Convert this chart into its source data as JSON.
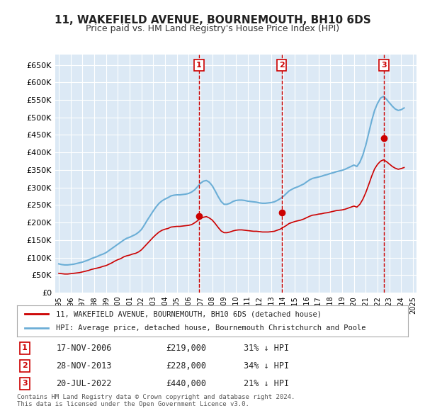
{
  "title": "11, WAKEFIELD AVENUE, BOURNEMOUTH, BH10 6DS",
  "subtitle": "Price paid vs. HM Land Registry's House Price Index (HPI)",
  "background_color": "#dce9f5",
  "plot_bg_color": "#dce9f5",
  "ylabel_color": "#222222",
  "ylim": [
    0,
    680000
  ],
  "yticks": [
    0,
    50000,
    100000,
    150000,
    200000,
    250000,
    300000,
    350000,
    400000,
    450000,
    500000,
    550000,
    600000,
    650000
  ],
  "ytick_labels": [
    "£0",
    "£50K",
    "£100K",
    "£150K",
    "£200K",
    "£250K",
    "£300K",
    "£350K",
    "£400K",
    "£450K",
    "£500K",
    "£550K",
    "£600K",
    "£650K"
  ],
  "xticks": [
    1995,
    1996,
    1997,
    1998,
    1999,
    2000,
    2001,
    2002,
    2003,
    2004,
    2005,
    2006,
    2007,
    2008,
    2009,
    2010,
    2011,
    2012,
    2013,
    2014,
    2015,
    2016,
    2017,
    2018,
    2019,
    2020,
    2021,
    2022,
    2023,
    2024,
    2025
  ],
  "hpi_line_color": "#6baed6",
  "sale_line_color": "#cc0000",
  "sale_marker_color": "#cc0000",
  "transaction_line_color": "#cc0000",
  "legend_box_color": "#ffffff",
  "legend_border_color": "#aaaaaa",
  "sale_label_color": "#cc0000",
  "number_box_color": "#cc0000",
  "footer_text": "Contains HM Land Registry data © Crown copyright and database right 2024.\nThis data is licensed under the Open Government Licence v3.0.",
  "legend_entry1": "11, WAKEFIELD AVENUE, BOURNEMOUTH, BH10 6DS (detached house)",
  "legend_entry2": "HPI: Average price, detached house, Bournemouth Christchurch and Poole",
  "transactions": [
    {
      "num": 1,
      "date": "17-NOV-2006",
      "price": 219000,
      "hpi_pct": "31% ↓ HPI",
      "x": 2006.88
    },
    {
      "num": 2,
      "date": "28-NOV-2013",
      "price": 228000,
      "hpi_pct": "34% ↓ HPI",
      "x": 2013.88
    },
    {
      "num": 3,
      "date": "20-JUL-2022",
      "price": 440000,
      "hpi_pct": "21% ↓ HPI",
      "x": 2022.54
    }
  ],
  "hpi_data_x": [
    1995.0,
    1995.25,
    1995.5,
    1995.75,
    1996.0,
    1996.25,
    1996.5,
    1996.75,
    1997.0,
    1997.25,
    1997.5,
    1997.75,
    1998.0,
    1998.25,
    1998.5,
    1998.75,
    1999.0,
    1999.25,
    1999.5,
    1999.75,
    2000.0,
    2000.25,
    2000.5,
    2000.75,
    2001.0,
    2001.25,
    2001.5,
    2001.75,
    2002.0,
    2002.25,
    2002.5,
    2002.75,
    2003.0,
    2003.25,
    2003.5,
    2003.75,
    2004.0,
    2004.25,
    2004.5,
    2004.75,
    2005.0,
    2005.25,
    2005.5,
    2005.75,
    2006.0,
    2006.25,
    2006.5,
    2006.75,
    2007.0,
    2007.25,
    2007.5,
    2007.75,
    2008.0,
    2008.25,
    2008.5,
    2008.75,
    2009.0,
    2009.25,
    2009.5,
    2009.75,
    2010.0,
    2010.25,
    2010.5,
    2010.75,
    2011.0,
    2011.25,
    2011.5,
    2011.75,
    2012.0,
    2012.25,
    2012.5,
    2012.75,
    2013.0,
    2013.25,
    2013.5,
    2013.75,
    2014.0,
    2014.25,
    2014.5,
    2014.75,
    2015.0,
    2015.25,
    2015.5,
    2015.75,
    2016.0,
    2016.25,
    2016.5,
    2016.75,
    2017.0,
    2017.25,
    2017.5,
    2017.75,
    2018.0,
    2018.25,
    2018.5,
    2018.75,
    2019.0,
    2019.25,
    2019.5,
    2019.75,
    2020.0,
    2020.25,
    2020.5,
    2020.75,
    2021.0,
    2021.25,
    2021.5,
    2021.75,
    2022.0,
    2022.25,
    2022.5,
    2022.75,
    2023.0,
    2023.25,
    2023.5,
    2023.75,
    2024.0,
    2024.25
  ],
  "hpi_data_y": [
    82000,
    80000,
    79000,
    79000,
    80000,
    81000,
    83000,
    85000,
    87000,
    90000,
    93000,
    97000,
    100000,
    103000,
    107000,
    110000,
    114000,
    120000,
    126000,
    132000,
    138000,
    144000,
    150000,
    155000,
    158000,
    162000,
    166000,
    172000,
    180000,
    193000,
    207000,
    220000,
    233000,
    245000,
    255000,
    262000,
    267000,
    271000,
    276000,
    278000,
    279000,
    279000,
    280000,
    281000,
    283000,
    287000,
    293000,
    302000,
    312000,
    318000,
    320000,
    315000,
    305000,
    290000,
    274000,
    260000,
    252000,
    252000,
    255000,
    260000,
    263000,
    264000,
    264000,
    263000,
    261000,
    260000,
    259000,
    258000,
    256000,
    255000,
    255000,
    256000,
    257000,
    259000,
    263000,
    268000,
    274000,
    282000,
    290000,
    295000,
    299000,
    302000,
    306000,
    310000,
    316000,
    322000,
    326000,
    328000,
    330000,
    332000,
    335000,
    337000,
    340000,
    342000,
    345000,
    347000,
    349000,
    352000,
    356000,
    360000,
    364000,
    360000,
    372000,
    392000,
    420000,
    455000,
    490000,
    520000,
    540000,
    555000,
    560000,
    552000,
    542000,
    532000,
    524000,
    520000,
    522000,
    527000
  ],
  "sale_hpi_x": [
    1995.0,
    1995.25,
    1995.5,
    1995.75,
    1996.0,
    1996.25,
    1996.5,
    1996.75,
    1997.0,
    1997.25,
    1997.5,
    1997.75,
    1998.0,
    1998.25,
    1998.5,
    1998.75,
    1999.0,
    1999.25,
    1999.5,
    1999.75,
    2000.0,
    2000.25,
    2000.5,
    2000.75,
    2001.0,
    2001.25,
    2001.5,
    2001.75,
    2002.0,
    2002.25,
    2002.5,
    2002.75,
    2003.0,
    2003.25,
    2003.5,
    2003.75,
    2004.0,
    2004.25,
    2004.5,
    2004.75,
    2005.0,
    2005.25,
    2005.5,
    2005.75,
    2006.0,
    2006.25,
    2006.5,
    2006.75,
    2007.0,
    2007.25,
    2007.5,
    2007.75,
    2008.0,
    2008.25,
    2008.5,
    2008.75,
    2009.0,
    2009.25,
    2009.5,
    2009.75,
    2010.0,
    2010.25,
    2010.5,
    2010.75,
    2011.0,
    2011.25,
    2011.5,
    2011.75,
    2012.0,
    2012.25,
    2012.5,
    2012.75,
    2013.0,
    2013.25,
    2013.5,
    2013.75,
    2014.0,
    2014.25,
    2014.5,
    2014.75,
    2015.0,
    2015.25,
    2015.5,
    2015.75,
    2016.0,
    2016.25,
    2016.5,
    2016.75,
    2017.0,
    2017.25,
    2017.5,
    2017.75,
    2018.0,
    2018.25,
    2018.5,
    2018.75,
    2019.0,
    2019.25,
    2019.5,
    2019.75,
    2020.0,
    2020.25,
    2020.5,
    2020.75,
    2021.0,
    2021.25,
    2021.5,
    2021.75,
    2022.0,
    2022.25,
    2022.5,
    2022.75,
    2023.0,
    2023.25,
    2023.5,
    2023.75,
    2024.0,
    2024.25
  ],
  "sale_hpi_y": [
    55000,
    54000,
    53000,
    53000,
    54000,
    55000,
    56000,
    57000,
    59000,
    61000,
    63000,
    66000,
    68000,
    70000,
    72000,
    75000,
    77000,
    81000,
    85000,
    90000,
    94000,
    97000,
    102000,
    105000,
    107000,
    110000,
    112000,
    116000,
    122000,
    131000,
    140000,
    149000,
    158000,
    166000,
    173000,
    178000,
    181000,
    183000,
    187000,
    188000,
    189000,
    189000,
    190000,
    191000,
    192000,
    194000,
    199000,
    205000,
    212000,
    215000,
    217000,
    213000,
    207000,
    197000,
    186000,
    176000,
    171000,
    171000,
    173000,
    176000,
    178000,
    179000,
    179000,
    178000,
    177000,
    176000,
    175000,
    175000,
    174000,
    173000,
    173000,
    173000,
    174000,
    175000,
    178000,
    181000,
    186000,
    191000,
    197000,
    200000,
    203000,
    205000,
    207000,
    210000,
    214000,
    218000,
    221000,
    222000,
    224000,
    225000,
    227000,
    228000,
    230000,
    232000,
    234000,
    235000,
    236000,
    238000,
    241000,
    244000,
    247000,
    244000,
    252000,
    266000,
    285000,
    308000,
    332000,
    353000,
    366000,
    375000,
    379000,
    374000,
    367000,
    360000,
    355000,
    352000,
    354000,
    357000
  ],
  "xlim": [
    1994.7,
    2025.3
  ]
}
